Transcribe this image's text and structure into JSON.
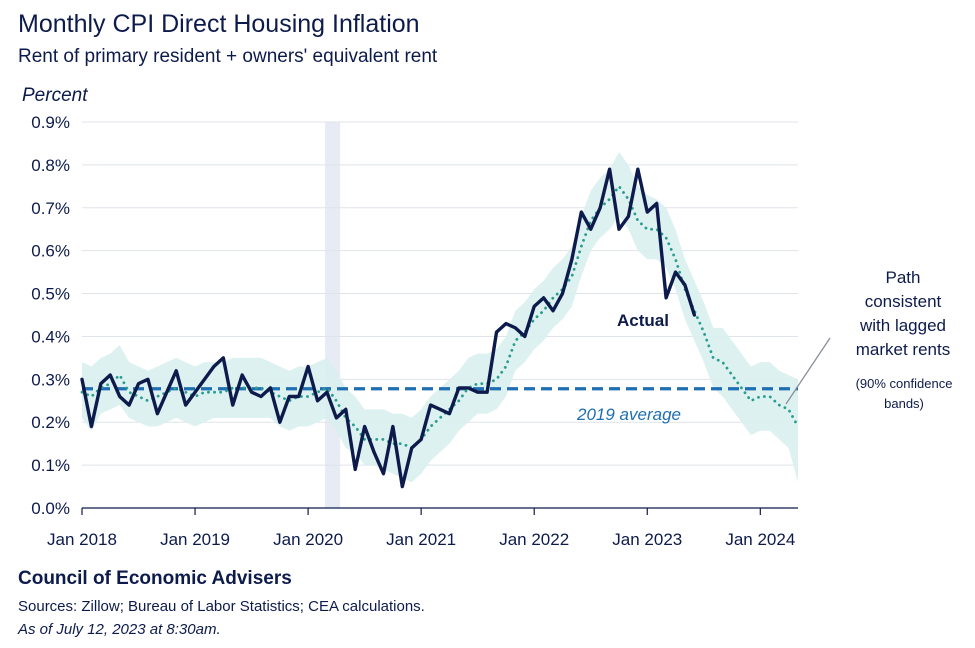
{
  "title": "Monthly CPI Direct Housing Inflation",
  "subtitle": "Rent of primary resident +  owners' equivalent rent",
  "footer": {
    "org": "Council of Economic Advisers",
    "sources": "Sources: Zillow; Bureau of Labor Statistics; CEA calculations.",
    "date": "As of July 12, 2023 at 8:30am."
  },
  "colors": {
    "actual": "#0d1b4c",
    "path": "#2a9d8f",
    "band": "#d9f0ef",
    "average": "#1f6fb2",
    "recession": "#e6ebf4",
    "grid": "#dfe3ea"
  },
  "chart_data": {
    "type": "line",
    "ylabel": "Percent",
    "ylim": [
      0,
      0.9
    ],
    "y_ticks": [
      {
        "value": 0.0,
        "label": "0.0%"
      },
      {
        "value": 0.1,
        "label": "0.1%"
      },
      {
        "value": 0.2,
        "label": "0.2%"
      },
      {
        "value": 0.3,
        "label": "0.3%"
      },
      {
        "value": 0.4,
        "label": "0.4%"
      },
      {
        "value": 0.5,
        "label": "0.5%"
      },
      {
        "value": 0.6,
        "label": "0.6%"
      },
      {
        "value": 0.7,
        "label": "0.7%"
      },
      {
        "value": 0.8,
        "label": "0.8%"
      },
      {
        "value": 0.9,
        "label": "0.9%"
      }
    ],
    "xlim_months": [
      0,
      76
    ],
    "x_ticks": [
      {
        "month": 0,
        "label": "Jan 2018"
      },
      {
        "month": 12,
        "label": "Jan 2019"
      },
      {
        "month": 24,
        "label": "Jan 2020"
      },
      {
        "month": 36,
        "label": "Jan 2021"
      },
      {
        "month": 48,
        "label": "Jan 2022"
      },
      {
        "month": 60,
        "label": "Jan 2023"
      },
      {
        "month": 72,
        "label": "Jan 2024"
      }
    ],
    "recession_shading": {
      "start_month": 25.8,
      "end_month": 27.4
    },
    "average_2019": {
      "value": 0.278,
      "label": "2019 average"
    },
    "series": [
      {
        "name": "Actual",
        "start_month": 0,
        "values": [
          0.3,
          0.19,
          0.29,
          0.31,
          0.26,
          0.24,
          0.29,
          0.3,
          0.22,
          0.27,
          0.32,
          0.24,
          0.27,
          0.3,
          0.33,
          0.35,
          0.24,
          0.31,
          0.27,
          0.26,
          0.28,
          0.2,
          0.26,
          0.26,
          0.33,
          0.25,
          0.27,
          0.21,
          0.23,
          0.09,
          0.19,
          0.13,
          0.08,
          0.19,
          0.05,
          0.14,
          0.16,
          0.24,
          0.23,
          0.22,
          0.28,
          0.28,
          0.27,
          0.27,
          0.41,
          0.43,
          0.42,
          0.4,
          0.47,
          0.49,
          0.46,
          0.5,
          0.58,
          0.69,
          0.65,
          0.7,
          0.79,
          0.65,
          0.68,
          0.79,
          0.69,
          0.71,
          0.49,
          0.55,
          0.52,
          0.45
        ]
      },
      {
        "name": "Path consistent with lagged market rents",
        "start_month": 0,
        "values": [
          0.27,
          0.26,
          0.28,
          0.29,
          0.31,
          0.27,
          0.26,
          0.25,
          0.26,
          0.27,
          0.28,
          0.27,
          0.26,
          0.27,
          0.27,
          0.27,
          0.28,
          0.28,
          0.28,
          0.28,
          0.27,
          0.26,
          0.25,
          0.26,
          0.26,
          0.27,
          0.28,
          0.25,
          0.21,
          0.19,
          0.16,
          0.16,
          0.16,
          0.15,
          0.15,
          0.14,
          0.16,
          0.19,
          0.21,
          0.23,
          0.25,
          0.28,
          0.29,
          0.29,
          0.3,
          0.33,
          0.39,
          0.41,
          0.44,
          0.46,
          0.49,
          0.51,
          0.54,
          0.61,
          0.67,
          0.7,
          0.72,
          0.75,
          0.72,
          0.67,
          0.65,
          0.65,
          0.63,
          0.58,
          0.51,
          0.46,
          0.41,
          0.35,
          0.34,
          0.31,
          0.28,
          0.25,
          0.26,
          0.26,
          0.24,
          0.23,
          0.19
        ],
        "band_low": [
          0.21,
          0.18,
          0.22,
          0.23,
          0.24,
          0.21,
          0.2,
          0.19,
          0.19,
          0.2,
          0.21,
          0.2,
          0.19,
          0.2,
          0.21,
          0.21,
          0.21,
          0.21,
          0.21,
          0.21,
          0.21,
          0.19,
          0.18,
          0.19,
          0.19,
          0.2,
          0.21,
          0.18,
          0.14,
          0.13,
          0.1,
          0.1,
          0.09,
          0.08,
          0.07,
          0.06,
          0.08,
          0.11,
          0.13,
          0.15,
          0.18,
          0.2,
          0.22,
          0.22,
          0.23,
          0.26,
          0.32,
          0.34,
          0.37,
          0.39,
          0.42,
          0.44,
          0.47,
          0.54,
          0.6,
          0.63,
          0.65,
          0.68,
          0.65,
          0.6,
          0.58,
          0.58,
          0.56,
          0.51,
          0.44,
          0.39,
          0.34,
          0.28,
          0.26,
          0.23,
          0.2,
          0.17,
          0.18,
          0.18,
          0.16,
          0.14,
          0.06
        ],
        "band_high": [
          0.34,
          0.33,
          0.35,
          0.36,
          0.38,
          0.34,
          0.33,
          0.32,
          0.33,
          0.34,
          0.35,
          0.34,
          0.33,
          0.34,
          0.34,
          0.34,
          0.35,
          0.35,
          0.35,
          0.35,
          0.34,
          0.33,
          0.32,
          0.33,
          0.33,
          0.34,
          0.35,
          0.32,
          0.28,
          0.26,
          0.23,
          0.23,
          0.23,
          0.22,
          0.22,
          0.21,
          0.23,
          0.26,
          0.28,
          0.3,
          0.32,
          0.35,
          0.36,
          0.36,
          0.37,
          0.4,
          0.46,
          0.48,
          0.51,
          0.53,
          0.56,
          0.58,
          0.61,
          0.68,
          0.74,
          0.77,
          0.79,
          0.83,
          0.8,
          0.75,
          0.73,
          0.72,
          0.7,
          0.65,
          0.58,
          0.53,
          0.48,
          0.42,
          0.42,
          0.39,
          0.36,
          0.33,
          0.34,
          0.34,
          0.32,
          0.31,
          0.3
        ]
      }
    ],
    "annotations": {
      "actual_label": "Actual",
      "path_label_lines": [
        "Path",
        "consistent",
        "with lagged",
        "market rents"
      ],
      "band_label_lines": [
        "(90% confidence",
        "bands)"
      ]
    }
  }
}
